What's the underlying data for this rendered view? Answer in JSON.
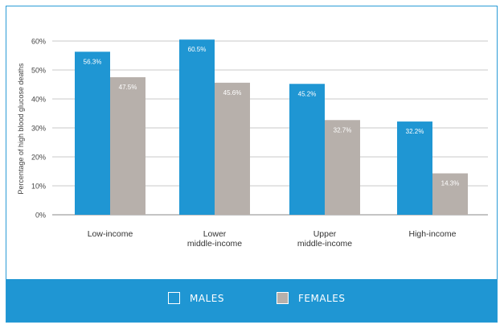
{
  "chart_data": {
    "type": "bar",
    "title": "",
    "ylabel": "Percentage of high blood glucose deaths",
    "xlabel": "",
    "ylim": [
      0,
      60
    ],
    "yticks": [
      "0%",
      "10%",
      "20%",
      "30%",
      "40%",
      "50%",
      "60%"
    ],
    "categories": [
      [
        "Low-income"
      ],
      [
        "Lower",
        "middle-income"
      ],
      [
        "Upper",
        "middle-income"
      ],
      [
        "High-income"
      ]
    ],
    "series": [
      {
        "name": "MALES",
        "color": "#1f96d3",
        "values": [
          56.3,
          60.5,
          45.2,
          32.2
        ],
        "labels": [
          "56.3%",
          "60.5%",
          "45.2%",
          "32.2%"
        ]
      },
      {
        "name": "FEMALES",
        "color": "#b7b0ab",
        "values": [
          47.5,
          45.6,
          32.7,
          14.3
        ],
        "labels": [
          "47.5%",
          "45.6%",
          "32.7%",
          "14.3%"
        ]
      }
    ],
    "legend_position": "bottom",
    "grid": true
  },
  "legend": {
    "males_label": "MALES",
    "females_label": "FEMALES",
    "males_color": "#1f96d3",
    "females_color": "#b7b0ab"
  }
}
